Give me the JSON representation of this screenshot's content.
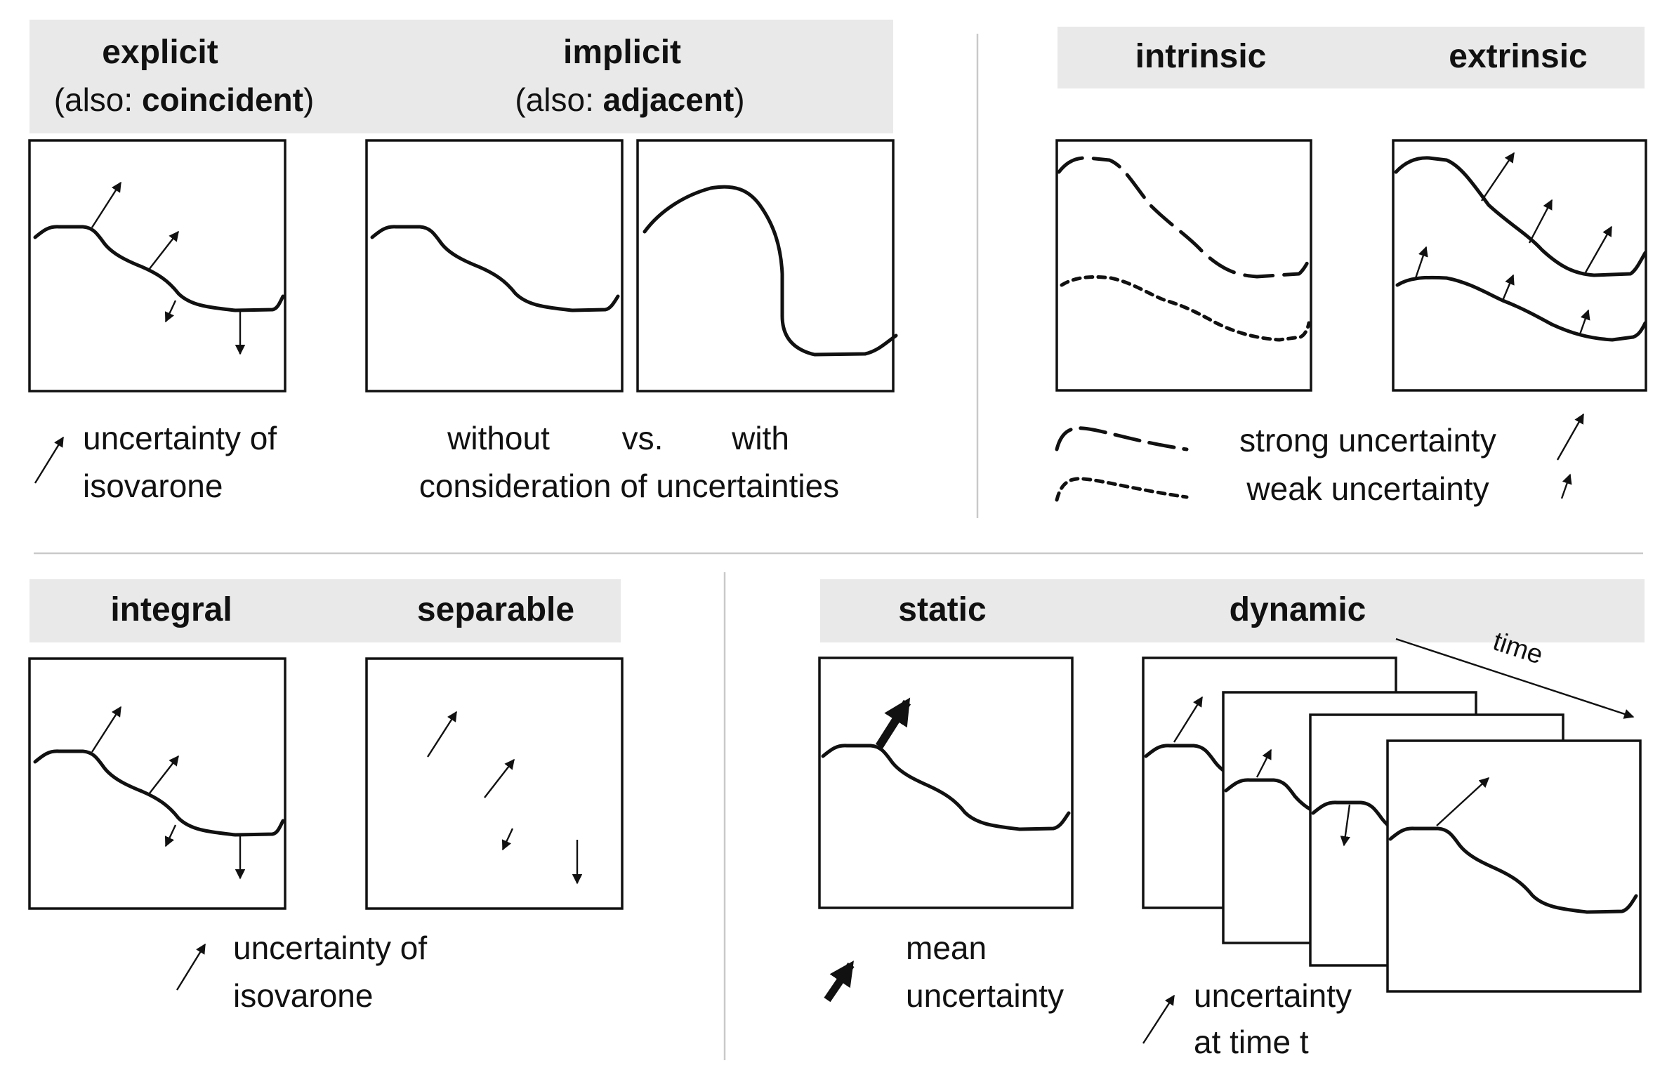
{
  "top_left": {
    "explicit": {
      "title": "explicit",
      "also_prefix": "(also: ",
      "also_term": "coincident",
      "also_suffix": ")"
    },
    "implicit": {
      "title": "implicit",
      "also_prefix": "(also: ",
      "also_term": "adjacent",
      "also_suffix": ")"
    },
    "legend": {
      "line1": "uncertainty of",
      "line2": "isovarone"
    },
    "comparison": {
      "without": "without",
      "vs": "vs.",
      "with": "with",
      "line2": "consideration of uncertainties"
    }
  },
  "top_right": {
    "intrinsic": {
      "title": "intrinsic"
    },
    "extrinsic": {
      "title": "extrinsic"
    },
    "legend": {
      "strong": "strong uncertainty",
      "weak": "weak uncertainty"
    }
  },
  "bottom_left": {
    "integral": {
      "title": "integral"
    },
    "separable": {
      "title": "separable"
    },
    "legend": {
      "line1": "uncertainty of",
      "line2": "isovarone"
    }
  },
  "bottom_right": {
    "static": {
      "title": "static"
    },
    "dynamic": {
      "title": "dynamic"
    },
    "time_label": "time",
    "mean_legend": {
      "line1": "mean",
      "line2": "uncertainty"
    },
    "time_legend": {
      "line1": "uncertainty",
      "line2": "at time t"
    }
  },
  "colors": {
    "ink": "#111111",
    "band": "#e9e9e9",
    "divider": "#c9c9c9"
  },
  "icons": [
    "arrow-icon",
    "thick-arrow-icon",
    "dashed-line-icon",
    "dotted-line-icon"
  ]
}
